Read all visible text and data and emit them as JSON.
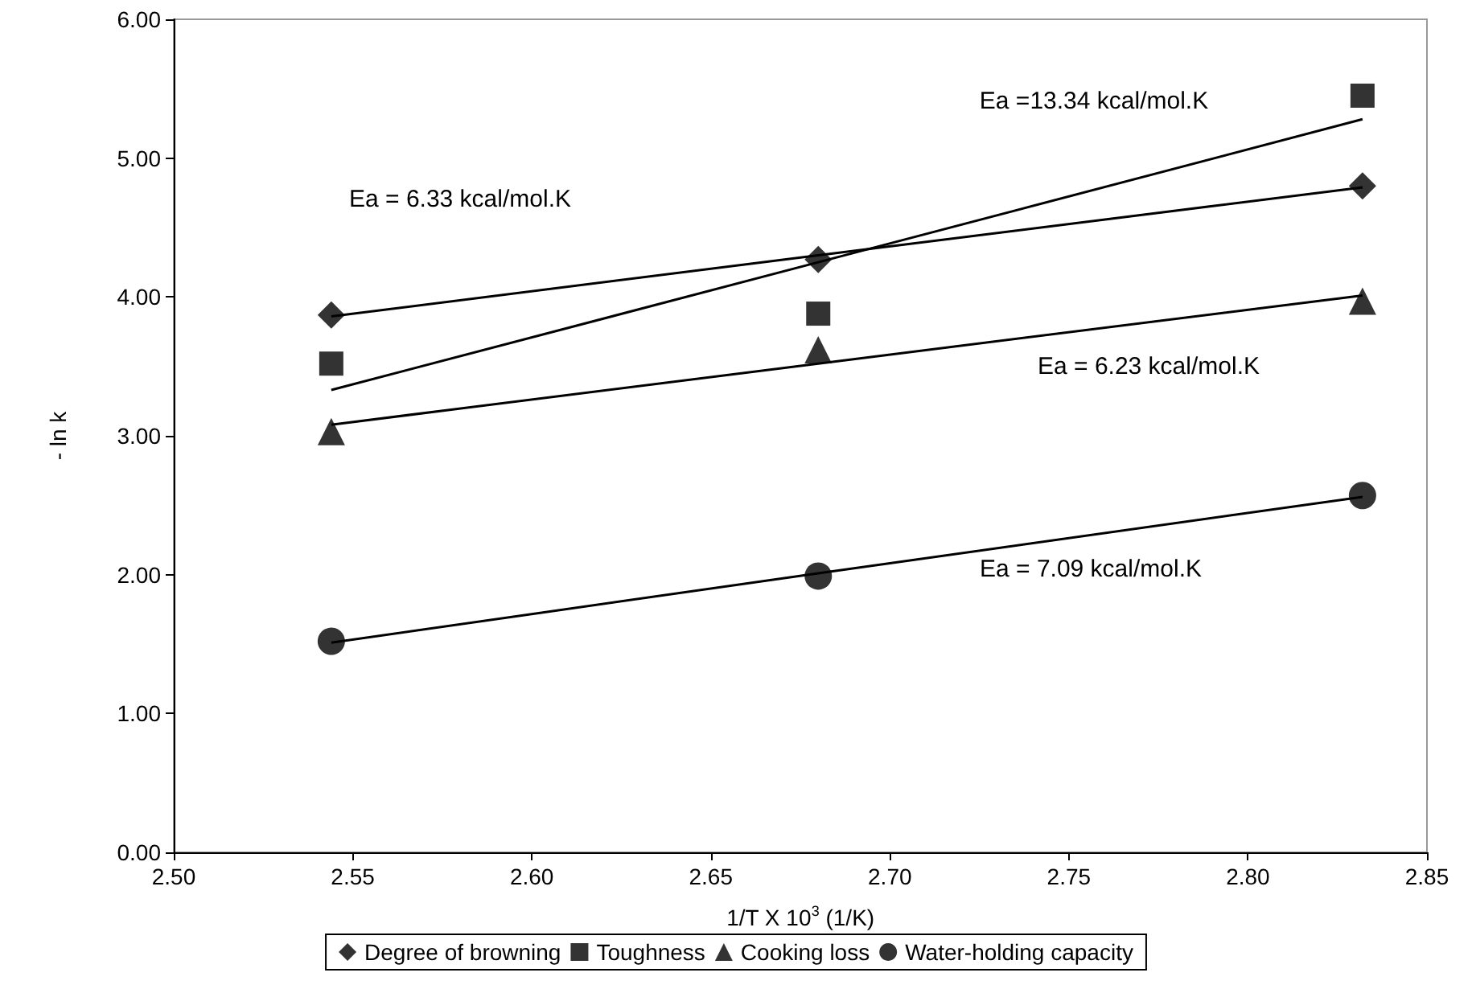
{
  "chart_data": {
    "type": "scatter",
    "xlabel": "1/T X 10$^{3}$ (1/K)",
    "ylabel": "- ln k",
    "xlim": [
      2.5,
      2.85
    ],
    "xticks": [
      {
        "value": 2.5,
        "label": "2.50"
      },
      {
        "value": 2.55,
        "label": "2.55"
      },
      {
        "value": 2.6,
        "label": "2.60"
      },
      {
        "value": 2.65,
        "label": "2.65"
      },
      {
        "value": 2.7,
        "label": "2.70"
      },
      {
        "value": 2.75,
        "label": "2.75"
      },
      {
        "value": 2.8,
        "label": "2.80"
      },
      {
        "value": 2.85,
        "label": "2.85"
      }
    ],
    "ylim": [
      0,
      6
    ],
    "yticks": [
      {
        "value": 0,
        "label": "0.00"
      },
      {
        "value": 1,
        "label": "1.00"
      },
      {
        "value": 2,
        "label": "2.00"
      },
      {
        "value": 3,
        "label": "3.00"
      },
      {
        "value": 4,
        "label": "4.00"
      },
      {
        "value": 5,
        "label": "5.00"
      },
      {
        "value": 6,
        "label": "6.00"
      }
    ],
    "grid": false,
    "legend": "bottom",
    "x": [
      2.544,
      2.68,
      2.832
    ],
    "series": [
      {
        "name": "Degree of browning",
        "color": "#000000",
        "marker": "diamond",
        "values": [
          3.87,
          4.27,
          4.8
        ]
      },
      {
        "name": "Toughness",
        "color": "#000000",
        "marker": "square",
        "values": [
          3.52,
          3.88,
          5.45
        ]
      },
      {
        "name": "Cooking loss",
        "color": "#000000",
        "marker": "triangle",
        "values": [
          3.03,
          3.62,
          3.97
        ]
      },
      {
        "name": "Water-holding capacity",
        "color": "#000000",
        "marker": "circle",
        "values": [
          1.52,
          1.99,
          2.57
        ]
      },
      {
        "type": "line",
        "color": "#000000",
        "marker": "none",
        "values": [
          3.86,
          4.3,
          4.79
        ]
      },
      {
        "type": "line",
        "color": "#000000",
        "marker": "none",
        "values": [
          3.33,
          4.25,
          5.28
        ]
      },
      {
        "type": "line",
        "color": "#000000",
        "marker": "none",
        "values": [
          3.08,
          3.52,
          4.01
        ]
      },
      {
        "type": "line",
        "color": "#000000",
        "marker": "none",
        "values": [
          1.51,
          2.01,
          2.56
        ]
      }
    ],
    "annotations": [
      "Ea =13.34 kcal/mol.K",
      "Ea = 6.33 kcal/mol.K",
      "Ea = 6.23 kcal/mol.K",
      "Ea = 7.09 kcal/mol.K"
    ]
  }
}
